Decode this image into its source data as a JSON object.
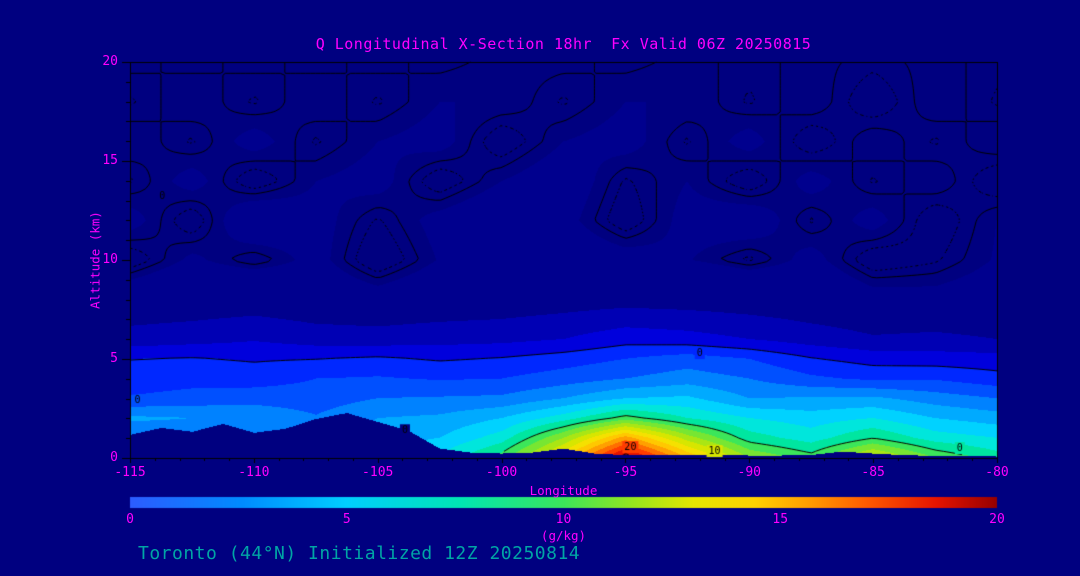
{
  "figure": {
    "bg": "#000080",
    "title": "Q Longitudinal X-Section 18hr  Fx Valid 06Z 20250815",
    "footer": "Toronto (44°N) Initialized 12Z 20250814",
    "text_color": "#FF00FF",
    "footer_color": "#00A5A5",
    "axis_color": "#000000"
  },
  "axes": {
    "xlabel": "Longitude",
    "ylabel": "Altitude (km)",
    "x_range": [
      -115,
      -80
    ],
    "y_range": [
      0,
      20
    ],
    "x_ticks": [
      -115,
      -110,
      -105,
      -100,
      -95,
      -90,
      -85,
      -80
    ],
    "y_ticks": [
      0,
      5,
      10,
      15,
      20
    ]
  },
  "colorbar": {
    "ticks": [
      0,
      5,
      10,
      15,
      20
    ],
    "range": [
      0,
      20
    ],
    "units": "(g/kg)",
    "stops": [
      [
        0.0,
        "#2D5CFF"
      ],
      [
        0.13,
        "#008CFF"
      ],
      [
        0.25,
        "#00CFFF"
      ],
      [
        0.38,
        "#00E6B4"
      ],
      [
        0.5,
        "#3CE65A"
      ],
      [
        0.58,
        "#96E61E"
      ],
      [
        0.65,
        "#E6E600"
      ],
      [
        0.72,
        "#FFD200"
      ],
      [
        0.78,
        "#FFA000"
      ],
      [
        0.85,
        "#FF5A00"
      ],
      [
        0.93,
        "#E61400"
      ],
      [
        1.0,
        "#960000"
      ]
    ]
  },
  "chart_data": {
    "type": "heatmap",
    "title": "Q Longitudinal X-Section 18hr  Fx Valid 06Z 20250815",
    "xlabel": "Longitude",
    "ylabel": "Altitude (km)",
    "units": "g/kg",
    "xlim": [
      -115,
      -80
    ],
    "ylim": [
      0,
      20
    ],
    "colorbar_range": [
      0,
      20
    ],
    "x_lons": [
      -115,
      -112.5,
      -110,
      -107.5,
      -105,
      -102.5,
      -100,
      -97.5,
      -95,
      -92.5,
      -90,
      -87.5,
      -85,
      -82.5,
      -80
    ],
    "y_alts_km": [
      0,
      1,
      2,
      3,
      4,
      5,
      6,
      8,
      10,
      12,
      14,
      16,
      18,
      20
    ],
    "q_values": [
      [
        5,
        5,
        6,
        6,
        7,
        8.2,
        10.5,
        15,
        21,
        16,
        12,
        10.5,
        13.5,
        11,
        9.5
      ],
      [
        5,
        5.2,
        5.4,
        5.6,
        6.5,
        7,
        8.5,
        12,
        16.5,
        12.5,
        9.5,
        8.5,
        10,
        8.5,
        8
      ],
      [
        6.2,
        6,
        5.8,
        5.1,
        6,
        6.2,
        7,
        8.5,
        10.5,
        9,
        8,
        7.5,
        8,
        7,
        6.5
      ],
      [
        4.1,
        4.4,
        4.6,
        4.5,
        5,
        5.1,
        5.2,
        6,
        7,
        7.2,
        6,
        6.1,
        6.2,
        5.5,
        5
      ],
      [
        3.4,
        3.6,
        3.5,
        4,
        4.1,
        3.9,
        4,
        4.5,
        5,
        5.5,
        5,
        4.2,
        3.8,
        3.9,
        3.4
      ],
      [
        3,
        3.1,
        2.9,
        3,
        3.2,
        2.9,
        3.1,
        3.5,
        4,
        4.5,
        4,
        3.1,
        2.6,
        2.5,
        2.4
      ],
      [
        1.4,
        1.6,
        1.9,
        1.5,
        1.4,
        1.6,
        1.7,
        2,
        2.6,
        2.4,
        2,
        1.5,
        1.1,
        1.2,
        1.0
      ],
      [
        0.2,
        0.28,
        0.38,
        0.2,
        0.14,
        0.22,
        0.32,
        0.48,
        0.58,
        0.5,
        0.38,
        0.24,
        0.12,
        0.1,
        0.14
      ],
      [
        -0.1,
        0.08,
        -0.05,
        0.1,
        -0.12,
        0.06,
        0.12,
        0.18,
        0.12,
        0.06,
        -0.06,
        0.1,
        -0.1,
        -0.05,
        0.06
      ],
      [
        0.1,
        -0.1,
        0.2,
        0.1,
        -0.05,
        0.1,
        0.2,
        0.1,
        -0.1,
        0.1,
        0.15,
        -0.05,
        0.1,
        -0.1,
        0.05
      ],
      [
        -0.05,
        0.1,
        -0.1,
        0.05,
        0.1,
        -0.1,
        0.05,
        0.15,
        -0.05,
        0.05,
        -0.1,
        0.1,
        -0.05,
        0.05,
        -0.1
      ],
      [
        0.05,
        -0.05,
        0.1,
        -0.05,
        0.05,
        0.1,
        -0.1,
        0.05,
        0.1,
        -0.05,
        0.1,
        -0.1,
        0.05,
        -0.05,
        0.05
      ],
      [
        -0.05,
        0.05,
        -0.05,
        0.05,
        -0.05,
        0.05,
        0.05,
        -0.05,
        0.05,
        0.05,
        -0.05,
        0.05,
        -0.1,
        0.05,
        -0.05
      ],
      [
        0.02,
        -0.02,
        0.02,
        -0.02,
        0.02,
        -0.02,
        0.02,
        0.02,
        -0.02,
        0.02,
        -0.02,
        0.02,
        -0.02,
        0.02,
        -0.02
      ]
    ],
    "terrain_lons": [
      -115,
      -113.75,
      -112.5,
      -111.25,
      -110,
      -108.75,
      -107.5,
      -106.25,
      -105,
      -103.75,
      -102.5,
      -101.25,
      -100,
      -98.75,
      -97.5,
      -96.25,
      -95,
      -93.75,
      -92.5,
      -91.25,
      -90,
      -88.75,
      -87.5,
      -86.25,
      -85,
      -83.75,
      -82.5,
      -81.25,
      -80
    ],
    "terrain_alt_km": [
      1.15,
      1.5,
      1.3,
      1.7,
      1.25,
      1.45,
      1.95,
      2.25,
      1.8,
      1.35,
      0.45,
      0.25,
      0.2,
      0.25,
      0.45,
      0.2,
      0.12,
      0.15,
      0.12,
      0.15,
      0.1,
      0.1,
      0.12,
      0.3,
      0.2,
      0.12,
      0.08,
      0.08,
      0.05
    ],
    "fill_threshold": 0.05,
    "fill_colors": [
      "#00008E",
      "#0000B4",
      "#0000DC",
      "#0028FF",
      "#0050FF",
      "#0082FF",
      "#00AAFF",
      "#00D2FF",
      "#00E6DC",
      "#00E6A0",
      "#3CE65A",
      "#78E632",
      "#AAE614",
      "#D7E600",
      "#F5E100",
      "#FFC800",
      "#FFA000",
      "#FF6E00",
      "#FF3C00",
      "#E61400",
      "#C80000"
    ],
    "contour_levels_solid": [
      0,
      3,
      10,
      20
    ],
    "contour_levels_dotted": [
      -0.04
    ],
    "contour_color": "#000000",
    "contour_labels": [
      {
        "text": "0",
        "lon": -113.7,
        "alt": 13.2
      },
      {
        "text": "0",
        "lon": -114.7,
        "alt": 2.9
      },
      {
        "text": "0",
        "lon": -103.9,
        "alt": 1.4
      },
      {
        "text": "0",
        "lon": -92.0,
        "alt": 5.3
      },
      {
        "text": "20",
        "lon": -94.8,
        "alt": 0.55
      },
      {
        "text": "10",
        "lon": -91.4,
        "alt": 0.35
      },
      {
        "text": "0",
        "lon": -81.5,
        "alt": 0.5
      }
    ]
  }
}
